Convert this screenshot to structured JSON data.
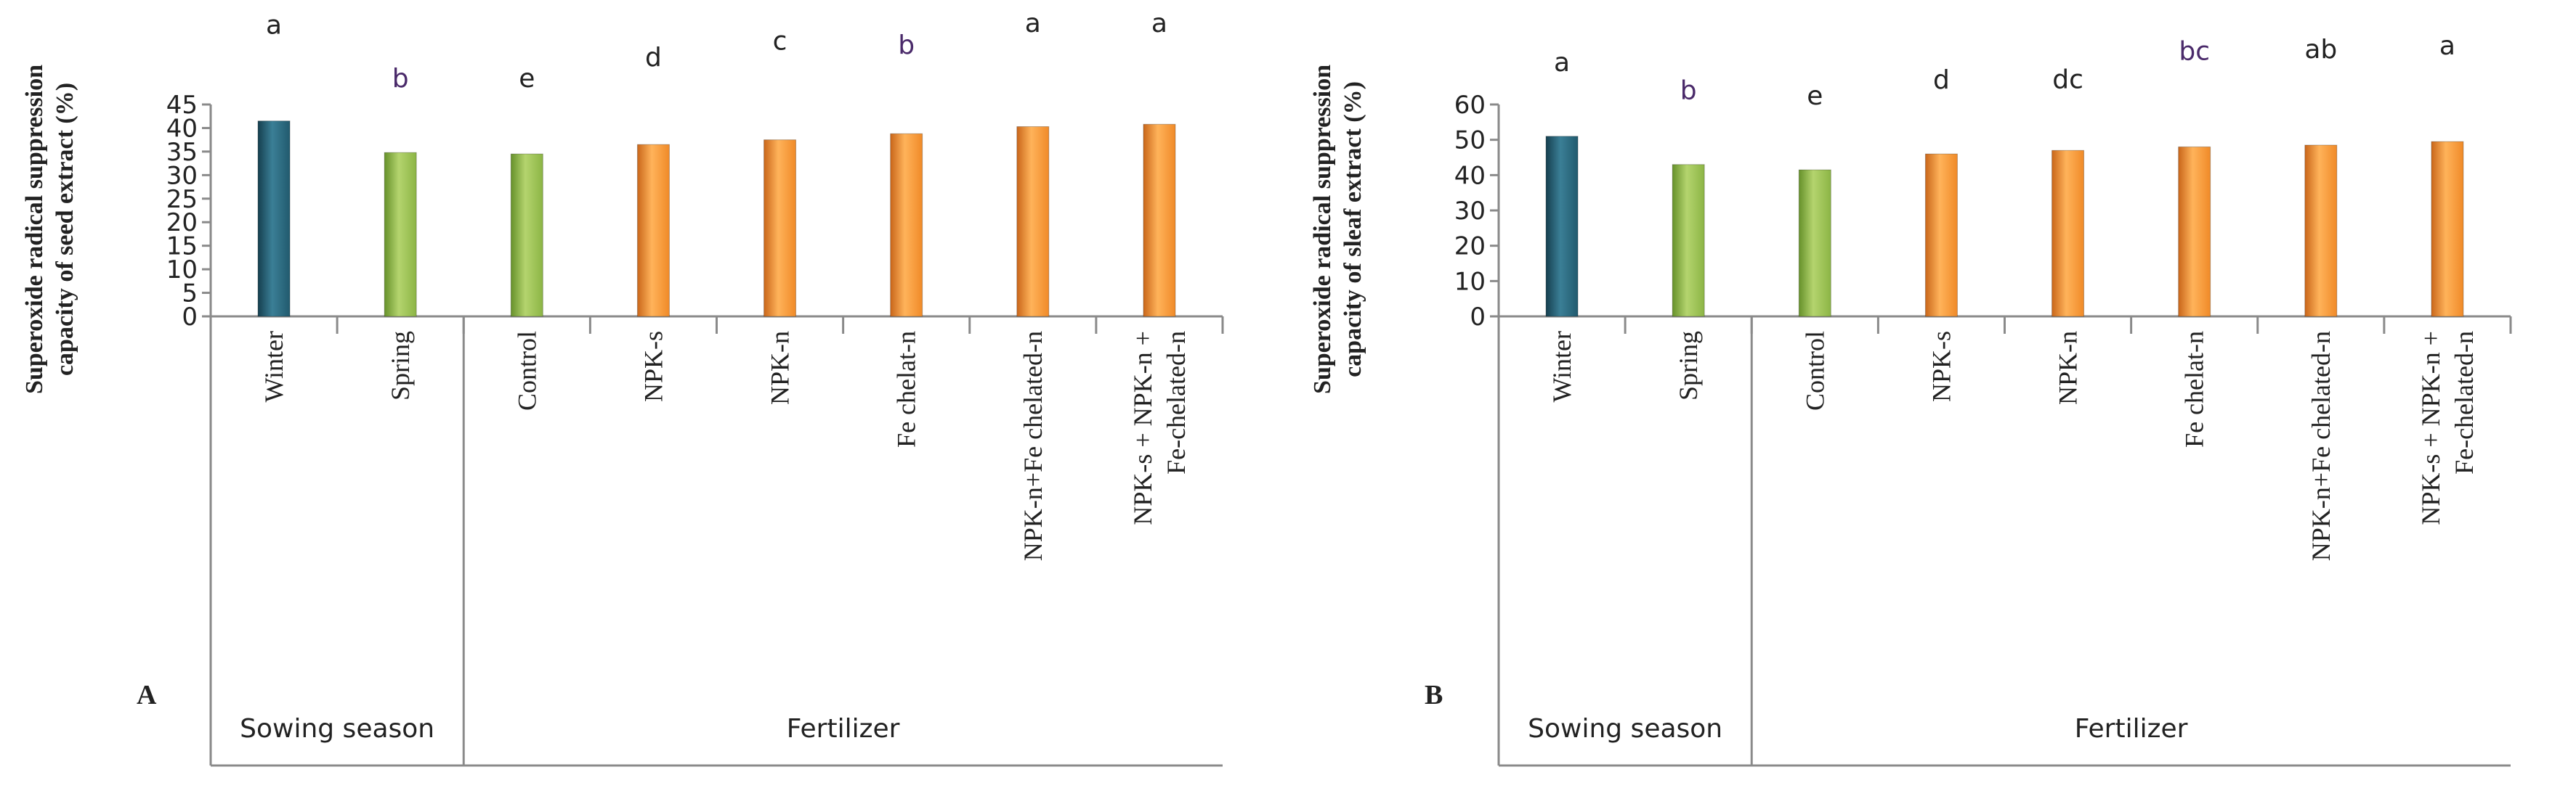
{
  "chart_data": [
    {
      "type": "bar",
      "panel_label": "A",
      "ylabel_line1": "Superoxide radical suppression",
      "ylabel_line2": "capacity of seed extract (%)",
      "ylim": [
        0,
        45
      ],
      "yticks": [
        0,
        5,
        10,
        15,
        20,
        25,
        30,
        35,
        40,
        45
      ],
      "categories": [
        "Winter",
        "Spring",
        "Control",
        "NPK-s",
        "NPK-n",
        "Fe chelat-n",
        "NPK-n+Fe chelated-n",
        "NPK-s + NPK-n + Fe-chelated-n"
      ],
      "category_lines": [
        [
          "Winter"
        ],
        [
          "Spring"
        ],
        [
          "Control"
        ],
        [
          "NPK-s"
        ],
        [
          "NPK-n"
        ],
        [
          "Fe chelat-n"
        ],
        [
          "NPK-n+Fe chelated-n"
        ],
        [
          "NPK-s + NPK-n  +",
          "Fe-chelated-n"
        ]
      ],
      "values": [
        41.5,
        34.8,
        34.5,
        36.5,
        37.5,
        38.8,
        40.3,
        40.8
      ],
      "letters": [
        "a",
        "b",
        "e",
        "d",
        "c",
        "b",
        "a",
        "a"
      ],
      "bar_colors": [
        "teal",
        "green",
        "green",
        "orange",
        "orange",
        "orange",
        "orange",
        "orange"
      ],
      "groups": [
        {
          "name": "Sowing season",
          "span": 2
        },
        {
          "name": "Fertilizer",
          "span": 6
        }
      ]
    },
    {
      "type": "bar",
      "panel_label": "B",
      "ylabel_line1": "Superoxide radical suppression",
      "ylabel_line2": "capacity of sleaf extract (%)",
      "ylim": [
        0,
        60
      ],
      "yticks": [
        0,
        10,
        20,
        30,
        40,
        50,
        60
      ],
      "categories": [
        "Winter",
        "Spring",
        "Control",
        "NPK-s",
        "NPK-n",
        "Fe chelat-n",
        "NPK-n+Fe chelated-n",
        "NPK-s + NPK-n + Fe-chelated-n"
      ],
      "category_lines": [
        [
          "Winter"
        ],
        [
          "Spring"
        ],
        [
          "Control"
        ],
        [
          "NPK-s"
        ],
        [
          "NPK-n"
        ],
        [
          "Fe chelat-n"
        ],
        [
          "NPK-n+Fe chelated-n"
        ],
        [
          "NPK-s + NPK-n  +",
          "Fe-chelated-n"
        ]
      ],
      "values": [
        51,
        43,
        41.5,
        46,
        47,
        48,
        48.5,
        49.5
      ],
      "letters": [
        "a",
        "b",
        "e",
        "d",
        "dc",
        "bc",
        "ab",
        "a"
      ],
      "bar_colors": [
        "teal",
        "green",
        "green",
        "orange",
        "orange",
        "orange",
        "orange",
        "orange"
      ],
      "groups": [
        {
          "name": "Sowing season",
          "span": 2
        },
        {
          "name": "Fertilizer",
          "span": 6
        }
      ]
    }
  ],
  "colors": {
    "teal": "#215a6e",
    "green": "#8cb545",
    "orange": "#f08a28",
    "axis": "#8a8a8a",
    "text": "#222222",
    "letter_purple": "#4a2a6a"
  }
}
